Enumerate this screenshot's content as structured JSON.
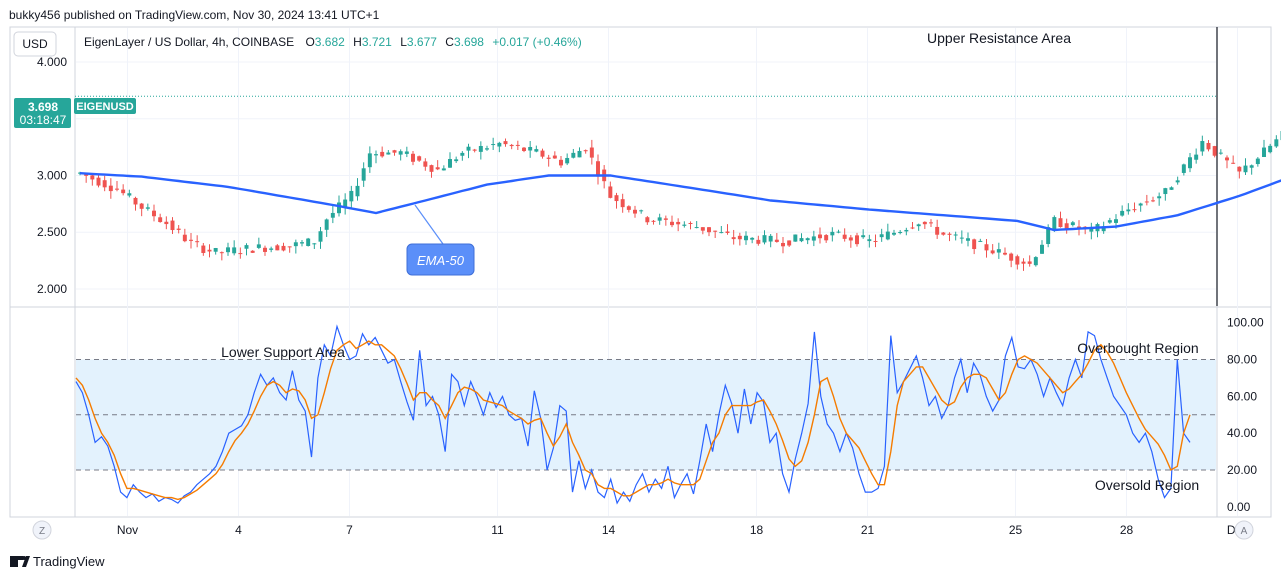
{
  "publisher_line": "bukky456 published on TradingView.com, Nov 30, 2024 13:41 UTC+1",
  "currency_button": "USD",
  "ohlc": {
    "symbol_desc": "EigenLayer / US Dollar, 4h, COINBASE",
    "o_label": "O",
    "o": "3.682",
    "h_label": "H",
    "h": "3.721",
    "l_label": "L",
    "l": "3.677",
    "c_label": "C",
    "c": "3.698",
    "change": "+0.017 (+0.46%)"
  },
  "price_tag": {
    "price": "3.698",
    "symbol": "EIGENUSD",
    "countdown": "03:18:47"
  },
  "annotations": {
    "upper_resistance": "Upper Resistance Area",
    "ema_callout": "EMA-50",
    "lower_support": "Lower Support Area",
    "overbought": "Overbought Region",
    "oversold": "Oversold Region"
  },
  "footer": {
    "logo_text": "TradingView",
    "z_button": "Z",
    "a_button": "A"
  },
  "colors": {
    "up": "#26a69a",
    "down": "#ef5350",
    "ema": "#2962ff",
    "k_line": "#2962ff",
    "d_line": "#f57c00",
    "band": "#e3f2fd",
    "tag": "#26a69a",
    "callout": "#5b8ff9"
  },
  "chart_data": [
    {
      "type": "candlestick",
      "ylim": [
        1.85,
        4.3
      ],
      "yticks": [
        "4.000",
        "3.500",
        "3.000",
        "2.500",
        "2.000"
      ],
      "ytick_values": [
        4.0,
        3.5,
        3.0,
        2.5,
        2.0
      ],
      "xticks": [
        "Nov",
        "4",
        "7",
        "11",
        "14",
        "18",
        "21",
        "25",
        "28",
        "Dec"
      ],
      "candles_per_day": 6,
      "start_day": 0,
      "last_price": 3.698,
      "close_path": [
        [
          0,
          3.02
        ],
        [
          6,
          2.88
        ],
        [
          10,
          2.72
        ],
        [
          14,
          2.58
        ],
        [
          18,
          2.4
        ],
        [
          22,
          2.32
        ],
        [
          28,
          2.36
        ],
        [
          34,
          2.38
        ],
        [
          38,
          2.42
        ],
        [
          40,
          2.62
        ],
        [
          44,
          2.82
        ],
        [
          47,
          3.2
        ],
        [
          52,
          3.2
        ],
        [
          58,
          3.05
        ],
        [
          62,
          3.2
        ],
        [
          68,
          3.28
        ],
        [
          74,
          3.2
        ],
        [
          78,
          3.12
        ],
        [
          82,
          3.25
        ],
        [
          86,
          2.82
        ],
        [
          92,
          2.62
        ],
        [
          100,
          2.55
        ],
        [
          106,
          2.45
        ],
        [
          114,
          2.42
        ],
        [
          122,
          2.48
        ],
        [
          128,
          2.42
        ],
        [
          132,
          2.5
        ],
        [
          136,
          2.6
        ],
        [
          140,
          2.48
        ],
        [
          146,
          2.38
        ],
        [
          150,
          2.3
        ],
        [
          154,
          2.22
        ],
        [
          158,
          2.6
        ],
        [
          164,
          2.5
        ],
        [
          170,
          2.7
        ],
        [
          176,
          2.85
        ],
        [
          182,
          3.3
        ],
        [
          188,
          3.02
        ],
        [
          196,
          3.4
        ],
        [
          202,
          3.82
        ],
        [
          206,
          3.75
        ],
        [
          210,
          3.68
        ],
        [
          214,
          3.58
        ],
        [
          218,
          3.65
        ],
        [
          220,
          3.95
        ],
        [
          222,
          3.7
        ]
      ],
      "ema50_path": [
        [
          0,
          3.02
        ],
        [
          10,
          2.99
        ],
        [
          24,
          2.9
        ],
        [
          40,
          2.75
        ],
        [
          48,
          2.67
        ],
        [
          56,
          2.78
        ],
        [
          66,
          2.92
        ],
        [
          76,
          3.0
        ],
        [
          86,
          3.0
        ],
        [
          98,
          2.9
        ],
        [
          112,
          2.78
        ],
        [
          128,
          2.7
        ],
        [
          140,
          2.65
        ],
        [
          152,
          2.6
        ],
        [
          158,
          2.52
        ],
        [
          168,
          2.55
        ],
        [
          178,
          2.65
        ],
        [
          188,
          2.82
        ],
        [
          198,
          3.02
        ],
        [
          206,
          3.18
        ],
        [
          216,
          3.26
        ],
        [
          222,
          3.31
        ]
      ]
    },
    {
      "type": "line",
      "ylim": [
        -5,
        108
      ],
      "yticks": [
        "100.00",
        "80.00",
        "60.00",
        "40.00",
        "20.00",
        "0.00"
      ],
      "ytick_values": [
        100,
        80,
        60,
        40,
        20,
        0
      ],
      "upper_band": 80,
      "lower_band": 20,
      "mid_line": 50,
      "series": [
        {
          "role": "k",
          "values": [
            68,
            62,
            50,
            35,
            38,
            33,
            22,
            8,
            5,
            12,
            8,
            5,
            7,
            3,
            5,
            4,
            2,
            6,
            8,
            12,
            15,
            18,
            22,
            30,
            40,
            42,
            44,
            50,
            62,
            72,
            66,
            70,
            62,
            58,
            74,
            58,
            52,
            27,
            70,
            88,
            82,
            98,
            88,
            80,
            82,
            94,
            88,
            92,
            85,
            78,
            80,
            68,
            57,
            47,
            85,
            55,
            60,
            50,
            30,
            72,
            68,
            55,
            68,
            60,
            50,
            62,
            54,
            60,
            50,
            47,
            48,
            33,
            63,
            48,
            20,
            32,
            55,
            52,
            8,
            25,
            10,
            20,
            8,
            5,
            15,
            2,
            8,
            3,
            12,
            18,
            8,
            15,
            10,
            22,
            5,
            12,
            18,
            7,
            25,
            45,
            30,
            50,
            66,
            56,
            40,
            64,
            45,
            62,
            57,
            35,
            40,
            18,
            8,
            26,
            40,
            56,
            95,
            60,
            45,
            40,
            30,
            40,
            32,
            18,
            8,
            8,
            10,
            22,
            93,
            62,
            68,
            75,
            82,
            70,
            55,
            60,
            48,
            55,
            70,
            80,
            62,
            78,
            72,
            60,
            52,
            58,
            82,
            92,
            76,
            75,
            80,
            72,
            60,
            70,
            62,
            55,
            70,
            80,
            70,
            95,
            93,
            80,
            70,
            60,
            55,
            50,
            40,
            35,
            40,
            30,
            15,
            5,
            10,
            80,
            40,
            35
          ],
          "stroke": "#2962ff"
        },
        {
          "role": "d",
          "values": [
            70,
            66,
            58,
            48,
            40,
            35,
            28,
            18,
            10,
            10,
            9,
            8,
            7,
            6,
            5,
            5,
            4,
            5,
            7,
            9,
            12,
            15,
            18,
            23,
            30,
            36,
            40,
            45,
            52,
            60,
            66,
            68,
            66,
            62,
            64,
            63,
            58,
            48,
            50,
            62,
            75,
            85,
            88,
            90,
            86,
            88,
            90,
            88,
            88,
            85,
            82,
            75,
            67,
            58,
            62,
            62,
            58,
            55,
            48,
            55,
            62,
            65,
            64,
            62,
            58,
            57,
            56,
            55,
            52,
            50,
            48,
            45,
            47,
            48,
            40,
            33,
            38,
            45,
            35,
            28,
            20,
            18,
            12,
            10,
            10,
            8,
            6,
            6,
            8,
            10,
            12,
            12,
            13,
            15,
            13,
            12,
            12,
            12,
            15,
            25,
            35,
            40,
            50,
            55,
            55,
            55,
            55,
            57,
            58,
            52,
            45,
            36,
            26,
            22,
            25,
            35,
            50,
            68,
            70,
            60,
            48,
            40,
            36,
            32,
            25,
            18,
            12,
            12,
            30,
            55,
            68,
            72,
            76,
            76,
            70,
            64,
            58,
            55,
            57,
            65,
            70,
            72,
            72,
            70,
            64,
            58,
            62,
            72,
            80,
            82,
            80,
            78,
            74,
            70,
            66,
            62,
            64,
            68,
            72,
            78,
            85,
            88,
            84,
            78,
            70,
            62,
            55,
            48,
            42,
            38,
            34,
            28,
            20,
            22,
            40,
            50
          ]
        }
      ]
    }
  ]
}
